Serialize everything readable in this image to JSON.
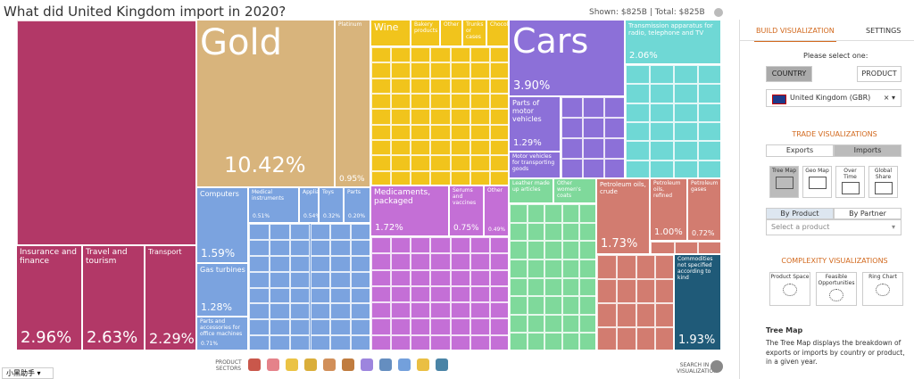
{
  "header": {
    "title": "What did United Kingdom import in 2020?",
    "summary": "Shown: $825B | Total: $825B"
  },
  "treemap": {
    "tiles": [
      {
        "label": "Insurance and finance",
        "share": "2.96%"
      },
      {
        "label": "Travel and tourism",
        "share": "2.63%"
      },
      {
        "label": "Transport",
        "share": "2.29%"
      },
      {
        "label": "Gold",
        "share": "10.42%"
      },
      {
        "label": "Platinum",
        "share": "0.95%"
      },
      {
        "label": "Wine"
      },
      {
        "label": "Bakery products"
      },
      {
        "label": "Other"
      },
      {
        "label": "Trunks or cases"
      },
      {
        "label": "Chocola..."
      },
      {
        "label": "Cars",
        "share": "3.90%"
      },
      {
        "label": "Transmission apparatus for radio, telephone and TV",
        "share": "2.06%"
      },
      {
        "label": "Parts of motor vehicles",
        "share": "1.29%"
      },
      {
        "label": "Motor vehicles for transporting goods"
      },
      {
        "label": "Computers",
        "share": "1.59%"
      },
      {
        "label": "Medical instruments",
        "share": "0.51%"
      },
      {
        "label": "Appliances",
        "share": "0.54%"
      },
      {
        "label": "Toys",
        "share": "0.32%"
      },
      {
        "label": "Parts",
        "share": "0.20%"
      },
      {
        "label": "Gas turbines",
        "share": "1.28%"
      },
      {
        "label": "Parts and accessories for office machines",
        "share": "0.71%"
      },
      {
        "label": "Medicaments, packaged",
        "share": "1.72%"
      },
      {
        "label": "Serums and vaccines",
        "share": "0.75%"
      },
      {
        "label": "Other",
        "share": "0.49%"
      },
      {
        "label": "Leather made up articles"
      },
      {
        "label": "Other women's coats"
      },
      {
        "label": "Petroleum oils, crude",
        "share": "1.73%"
      },
      {
        "label": "Petroleum oils, refined",
        "share": "1.00%"
      },
      {
        "label": "Petroleum gases",
        "share": "0.72%"
      },
      {
        "label": "Commodities not specified according to kind",
        "share": "1.93%"
      }
    ]
  },
  "footer": {
    "sectors_label": "PRODUCT SECTORS",
    "search_label": "SEARCH IN VISUALIZATION",
    "assistant": "小黑助手"
  },
  "sidebar": {
    "tabs": [
      "BUILD VISUALIZATION",
      "SETTINGS"
    ],
    "prompt": "Please select one:",
    "modes": [
      "COUNTRY",
      "PRODUCT"
    ],
    "country": "United Kingdom (GBR)",
    "trade_heading": "TRADE VISUALIZATIONS",
    "flows": [
      "Exports",
      "Imports"
    ],
    "trade_types": [
      "Tree Map",
      "Geo Map",
      "Over Time",
      "Global Share"
    ],
    "groupings": [
      "By Product",
      "By Partner"
    ],
    "product_select": "Select a product",
    "complexity_heading": "COMPLEXITY VISUALIZATIONS",
    "complexity_types": [
      "Product Space",
      "Feasible Opportunities",
      "Ring Chart"
    ],
    "info_title": "Tree Map",
    "info_text": "The Tree Map displays the breakdown of exports or imports by country or product, in a given year."
  }
}
